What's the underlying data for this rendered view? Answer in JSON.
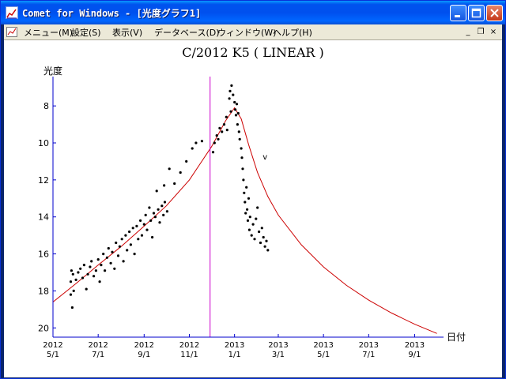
{
  "window": {
    "title": "Comet for Windows - [光度グラフ1]",
    "controls": {
      "minimize": "_",
      "maximize": "□",
      "close": "✕"
    }
  },
  "menu": {
    "items": [
      "メニュー(M)",
      "設定(S)",
      "表示(V)",
      "データベース(D)",
      "ウィンドウ(W)",
      "ヘルプ(H)"
    ],
    "mdi_controls": {
      "minimize": "_",
      "restore": "❐",
      "close": "×"
    }
  },
  "colors": {
    "fit_curve": "#cc0000",
    "perihelion_line": "#cc00cc",
    "axis": "#0000cc",
    "points": "#000000"
  },
  "chart_data": {
    "type": "scatter",
    "title": "C/2012 K5 ( LINEAR )",
    "ylabel": "光度",
    "xlabel": "日付",
    "y_inverted": true,
    "ylim": [
      20.5,
      6.5
    ],
    "yticks": [
      8,
      10,
      12,
      14,
      16,
      18,
      20
    ],
    "xlim": [
      "2012-05-01",
      "2013-10-10"
    ],
    "xticks": [
      {
        "year": "2012",
        "date": "5/1"
      },
      {
        "year": "2012",
        "date": "7/1"
      },
      {
        "year": "2012",
        "date": "9/1"
      },
      {
        "year": "2012",
        "date": "11/1"
      },
      {
        "year": "2013",
        "date": "1/1"
      },
      {
        "year": "2013",
        "date": "3/1"
      },
      {
        "year": "2013",
        "date": "5/1"
      },
      {
        "year": "2013",
        "date": "7/1"
      },
      {
        "year": "2013",
        "date": "9/1"
      }
    ],
    "perihelion_marker": {
      "x": "2012-11-29",
      "label": ""
    },
    "annotations": [
      {
        "text": "v",
        "x": "2013-02-08",
        "y": 10.9
      }
    ],
    "fit_curve": [
      {
        "x": "2012-05-01",
        "y": 18.6
      },
      {
        "x": "2012-06-01",
        "y": 17.6
      },
      {
        "x": "2012-07-01",
        "y": 16.6
      },
      {
        "x": "2012-08-01",
        "y": 15.6
      },
      {
        "x": "2012-09-01",
        "y": 14.5
      },
      {
        "x": "2012-10-01",
        "y": 13.4
      },
      {
        "x": "2012-11-01",
        "y": 12.0
      },
      {
        "x": "2012-12-01",
        "y": 10.2
      },
      {
        "x": "2012-12-20",
        "y": 8.8
      },
      {
        "x": "2013-01-01",
        "y": 8.1
      },
      {
        "x": "2013-01-10",
        "y": 8.7
      },
      {
        "x": "2013-01-20",
        "y": 10.1
      },
      {
        "x": "2013-02-01",
        "y": 11.6
      },
      {
        "x": "2013-02-15",
        "y": 12.9
      },
      {
        "x": "2013-03-01",
        "y": 13.9
      },
      {
        "x": "2013-04-01",
        "y": 15.5
      },
      {
        "x": "2013-05-01",
        "y": 16.7
      },
      {
        "x": "2013-06-01",
        "y": 17.7
      },
      {
        "x": "2013-07-01",
        "y": 18.5
      },
      {
        "x": "2013-08-01",
        "y": 19.2
      },
      {
        "x": "2013-09-01",
        "y": 19.8
      },
      {
        "x": "2013-10-01",
        "y": 20.3
      }
    ],
    "observations": [
      {
        "x": "2012-05-25",
        "y": 17.5
      },
      {
        "x": "2012-05-25",
        "y": 18.2
      },
      {
        "x": "2012-05-26",
        "y": 16.9
      },
      {
        "x": "2012-05-27",
        "y": 18.9
      },
      {
        "x": "2012-05-28",
        "y": 17.1
      },
      {
        "x": "2012-05-29",
        "y": 18.0
      },
      {
        "x": "2012-06-01",
        "y": 17.4
      },
      {
        "x": "2012-06-04",
        "y": 17.0
      },
      {
        "x": "2012-06-07",
        "y": 16.8
      },
      {
        "x": "2012-06-10",
        "y": 17.3
      },
      {
        "x": "2012-06-12",
        "y": 16.6
      },
      {
        "x": "2012-06-15",
        "y": 17.9
      },
      {
        "x": "2012-06-17",
        "y": 17.1
      },
      {
        "x": "2012-06-20",
        "y": 16.7
      },
      {
        "x": "2012-06-22",
        "y": 16.4
      },
      {
        "x": "2012-06-25",
        "y": 17.2
      },
      {
        "x": "2012-06-28",
        "y": 16.9
      },
      {
        "x": "2012-07-01",
        "y": 16.3
      },
      {
        "x": "2012-07-03",
        "y": 17.5
      },
      {
        "x": "2012-07-05",
        "y": 16.6
      },
      {
        "x": "2012-07-08",
        "y": 16.0
      },
      {
        "x": "2012-07-10",
        "y": 16.9
      },
      {
        "x": "2012-07-13",
        "y": 16.2
      },
      {
        "x": "2012-07-15",
        "y": 15.7
      },
      {
        "x": "2012-07-18",
        "y": 16.5
      },
      {
        "x": "2012-07-20",
        "y": 15.9
      },
      {
        "x": "2012-07-23",
        "y": 16.8
      },
      {
        "x": "2012-07-25",
        "y": 15.4
      },
      {
        "x": "2012-07-28",
        "y": 16.1
      },
      {
        "x": "2012-07-30",
        "y": 15.6
      },
      {
        "x": "2012-08-02",
        "y": 15.2
      },
      {
        "x": "2012-08-04",
        "y": 16.4
      },
      {
        "x": "2012-08-07",
        "y": 15.0
      },
      {
        "x": "2012-08-09",
        "y": 15.8
      },
      {
        "x": "2012-08-12",
        "y": 14.8
      },
      {
        "x": "2012-08-14",
        "y": 15.5
      },
      {
        "x": "2012-08-17",
        "y": 14.6
      },
      {
        "x": "2012-08-19",
        "y": 16.0
      },
      {
        "x": "2012-08-22",
        "y": 14.5
      },
      {
        "x": "2012-08-24",
        "y": 15.2
      },
      {
        "x": "2012-08-27",
        "y": 14.2
      },
      {
        "x": "2012-08-29",
        "y": 15.0
      },
      {
        "x": "2012-09-01",
        "y": 14.4
      },
      {
        "x": "2012-09-03",
        "y": 13.9
      },
      {
        "x": "2012-09-05",
        "y": 14.7
      },
      {
        "x": "2012-09-08",
        "y": 13.5
      },
      {
        "x": "2012-09-10",
        "y": 14.2
      },
      {
        "x": "2012-09-12",
        "y": 15.1
      },
      {
        "x": "2012-09-14",
        "y": 13.8
      },
      {
        "x": "2012-09-16",
        "y": 14.0
      },
      {
        "x": "2012-09-18",
        "y": 12.6
      },
      {
        "x": "2012-09-20",
        "y": 13.6
      },
      {
        "x": "2012-09-22",
        "y": 14.3
      },
      {
        "x": "2012-09-25",
        "y": 13.4
      },
      {
        "x": "2012-09-27",
        "y": 13.9
      },
      {
        "x": "2012-09-29",
        "y": 13.2
      },
      {
        "x": "2012-10-02",
        "y": 13.7
      },
      {
        "x": "2012-09-28",
        "y": 12.3
      },
      {
        "x": "2012-10-05",
        "y": 11.4
      },
      {
        "x": "2012-10-12",
        "y": 12.2
      },
      {
        "x": "2012-10-20",
        "y": 11.6
      },
      {
        "x": "2012-10-28",
        "y": 11.0
      },
      {
        "x": "2012-11-05",
        "y": 10.3
      },
      {
        "x": "2012-11-10",
        "y": 10.0
      },
      {
        "x": "2012-11-18",
        "y": 9.9
      },
      {
        "x": "2012-12-03",
        "y": 10.5
      },
      {
        "x": "2012-12-05",
        "y": 10.0
      },
      {
        "x": "2012-12-08",
        "y": 9.6
      },
      {
        "x": "2012-12-10",
        "y": 9.8
      },
      {
        "x": "2012-12-12",
        "y": 9.2
      },
      {
        "x": "2012-12-15",
        "y": 9.4
      },
      {
        "x": "2012-12-18",
        "y": 9.0
      },
      {
        "x": "2012-12-21",
        "y": 8.6
      },
      {
        "x": "2012-12-22",
        "y": 9.3
      },
      {
        "x": "2012-12-25",
        "y": 7.6
      },
      {
        "x": "2012-12-26",
        "y": 7.2
      },
      {
        "x": "2012-12-27",
        "y": 8.3
      },
      {
        "x": "2012-12-28",
        "y": 6.9
      },
      {
        "x": "2012-12-30",
        "y": 7.4
      },
      {
        "x": "2013-01-01",
        "y": 7.8
      },
      {
        "x": "2013-01-02",
        "y": 8.2
      },
      {
        "x": "2013-01-03",
        "y": 8.5
      },
      {
        "x": "2013-01-04",
        "y": 7.9
      },
      {
        "x": "2013-01-05",
        "y": 9.0
      },
      {
        "x": "2013-01-06",
        "y": 8.4
      },
      {
        "x": "2013-01-07",
        "y": 9.4
      },
      {
        "x": "2013-01-08",
        "y": 9.8
      },
      {
        "x": "2013-01-10",
        "y": 10.3
      },
      {
        "x": "2013-01-11",
        "y": 10.8
      },
      {
        "x": "2013-01-12",
        "y": 11.4
      },
      {
        "x": "2013-01-13",
        "y": 12.0
      },
      {
        "x": "2013-01-14",
        "y": 12.7
      },
      {
        "x": "2013-01-15",
        "y": 13.2
      },
      {
        "x": "2013-01-16",
        "y": 13.8
      },
      {
        "x": "2013-01-17",
        "y": 12.4
      },
      {
        "x": "2013-01-18",
        "y": 13.6
      },
      {
        "x": "2013-01-19",
        "y": 14.2
      },
      {
        "x": "2013-01-20",
        "y": 13.0
      },
      {
        "x": "2013-01-21",
        "y": 14.7
      },
      {
        "x": "2013-01-22",
        "y": 14.0
      },
      {
        "x": "2013-01-24",
        "y": 15.0
      },
      {
        "x": "2013-01-26",
        "y": 14.4
      },
      {
        "x": "2013-01-28",
        "y": 15.2
      },
      {
        "x": "2013-01-30",
        "y": 14.1
      },
      {
        "x": "2013-02-01",
        "y": 13.5
      },
      {
        "x": "2013-02-03",
        "y": 14.8
      },
      {
        "x": "2013-02-05",
        "y": 15.4
      },
      {
        "x": "2013-02-07",
        "y": 14.6
      },
      {
        "x": "2013-02-09",
        "y": 15.1
      },
      {
        "x": "2013-02-11",
        "y": 15.6
      },
      {
        "x": "2013-02-13",
        "y": 15.3
      },
      {
        "x": "2013-02-15",
        "y": 15.8
      }
    ]
  }
}
